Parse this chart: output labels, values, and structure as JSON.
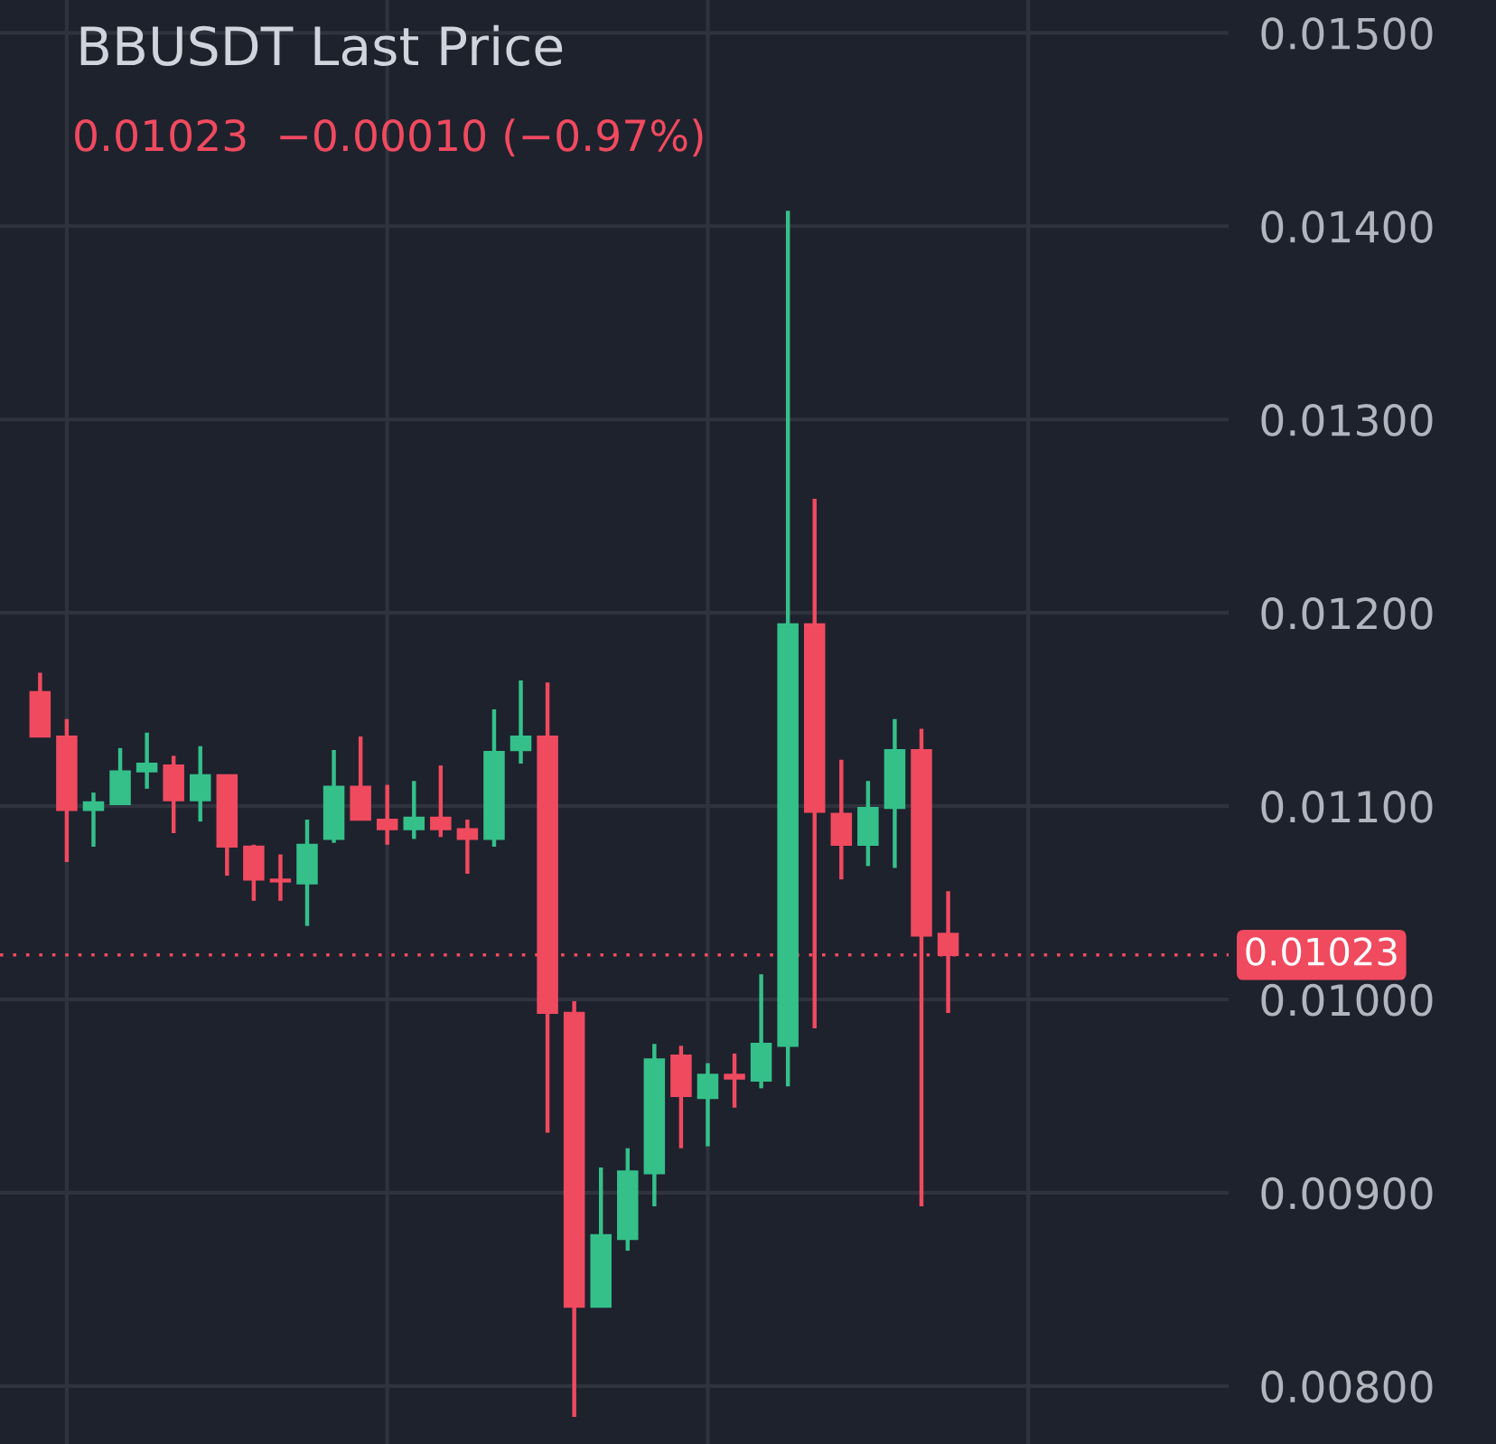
{
  "chart_data": {
    "type": "candlestick",
    "title": "BBUSDT Last Price",
    "subtitle": "0.01023  −0.00010 (−0.97%)",
    "categories": [
      null,
      null,
      null,
      null,
      null,
      null,
      null,
      null,
      null,
      null,
      null,
      null,
      null,
      null,
      null,
      null,
      null,
      null,
      null,
      null,
      null,
      null,
      null,
      null,
      null,
      null,
      null,
      null,
      null,
      null,
      null,
      null,
      null,
      null,
      null,
      null,
      null,
      null,
      null,
      null,
      null,
      null,
      null,
      null,
      null,
      null
    ],
    "ohlc": [
      null,
      [
        0.01159,
        0.01169,
        0.01136,
        0.01136
      ],
      [
        0.01136,
        0.01145,
        0.01071,
        0.01098
      ],
      [
        0.01098,
        0.01107,
        0.01079,
        0.01102
      ],
      [
        0.01101,
        0.0113,
        0.01101,
        0.01118
      ],
      [
        0.01118,
        0.01138,
        0.01109,
        0.01122
      ],
      [
        0.01121,
        0.01126,
        0.01086,
        0.01103
      ],
      [
        0.01103,
        0.01131,
        0.01092,
        0.01116
      ],
      [
        0.01116,
        0.01116,
        0.01064,
        0.01079
      ],
      [
        0.01079,
        0.0108,
        0.01051,
        0.01062
      ],
      [
        0.01062,
        0.01075,
        0.01051,
        0.01061
      ],
      [
        0.0106,
        0.01093,
        0.01038,
        0.0108
      ],
      [
        0.01083,
        0.01129,
        0.01081,
        0.0111
      ],
      [
        0.0111,
        0.01136,
        0.01093,
        0.01093
      ],
      [
        0.01093,
        0.01111,
        0.0108,
        0.01088
      ],
      [
        0.01088,
        0.01113,
        0.01083,
        0.01094
      ],
      [
        0.01094,
        0.01121,
        0.01084,
        0.01088
      ],
      [
        0.01088,
        0.01093,
        0.01065,
        0.01083
      ],
      [
        0.01083,
        0.0115,
        0.01079,
        0.01128
      ],
      [
        0.01129,
        0.01165,
        0.01122,
        0.01136
      ],
      [
        0.01136,
        0.01164,
        0.00931,
        0.00993
      ],
      [
        0.00993,
        0.00999,
        0.00784,
        0.00841
      ],
      [
        0.00841,
        0.00913,
        0.00841,
        0.00878
      ],
      [
        0.00876,
        0.00923,
        0.0087,
        0.00911
      ],
      [
        0.0091,
        0.00977,
        0.00893,
        0.00969
      ],
      [
        0.00971,
        0.00976,
        0.00923,
        0.0095
      ],
      [
        0.00949,
        0.00967,
        0.00924,
        0.00961
      ],
      [
        0.00961,
        0.00972,
        0.00944,
        0.00959
      ],
      [
        0.00958,
        0.01013,
        0.00954,
        0.00977
      ],
      [
        0.00976,
        0.01408,
        0.00955,
        0.01194
      ],
      [
        0.01194,
        0.01259,
        0.00985,
        0.01097
      ],
      [
        0.01096,
        0.01124,
        0.01062,
        0.0108
      ],
      [
        0.0108,
        0.01113,
        0.01069,
        0.01099
      ],
      [
        0.01099,
        0.01145,
        0.01068,
        0.01129
      ],
      [
        0.01129,
        0.0114,
        0.00893,
        0.01033
      ],
      [
        0.01034,
        0.01056,
        0.00993,
        0.01023
      ],
      null,
      null,
      null,
      null,
      null,
      null,
      null,
      null,
      null,
      null
    ],
    "ylim": [
      0.0077,
      0.01517
    ],
    "yticks": [
      {
        "value": 0.008,
        "label": "0.00800"
      },
      {
        "value": 0.009,
        "label": "0.00900"
      },
      {
        "value": 0.01,
        "label": "0.01000"
      },
      {
        "value": 0.011,
        "label": "0.01100"
      },
      {
        "value": 0.012,
        "label": "0.01200"
      },
      {
        "value": 0.013,
        "label": "0.01300"
      },
      {
        "value": 0.014,
        "label": "0.01400"
      },
      {
        "value": 0.015,
        "label": "0.01500"
      }
    ],
    "ref_lines": [
      {
        "axis": "y",
        "value": 0.01023,
        "label": "0.01023",
        "color": "#f04a5f",
        "line_style": "dotted"
      }
    ],
    "grid": true,
    "tick_labels": "y"
  }
}
